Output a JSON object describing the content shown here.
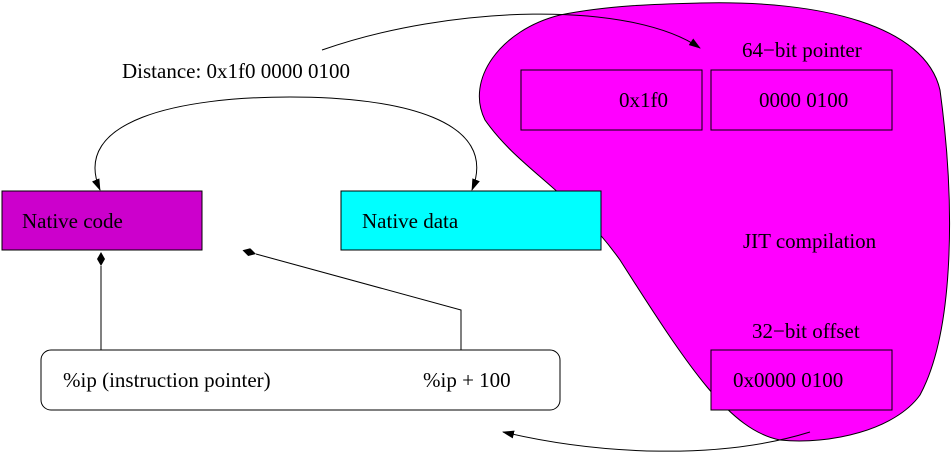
{
  "colors": {
    "blob": "#ff00ff",
    "native_code": "#cc00cc",
    "native_data": "#00ffff"
  },
  "labels": {
    "distance": "Distance: 0x1f0 0000 0100",
    "pointer_64": "64−bit pointer",
    "high": "0x1f0",
    "low": "0000 0100",
    "native_code": "Native code",
    "native_data": "Native data",
    "jit": "JIT compilation",
    "offset_32": "32−bit offset",
    "offset_value": "0x0000 0100",
    "ip": "%ip (instruction pointer)",
    "ip_plus": "%ip + 100"
  }
}
